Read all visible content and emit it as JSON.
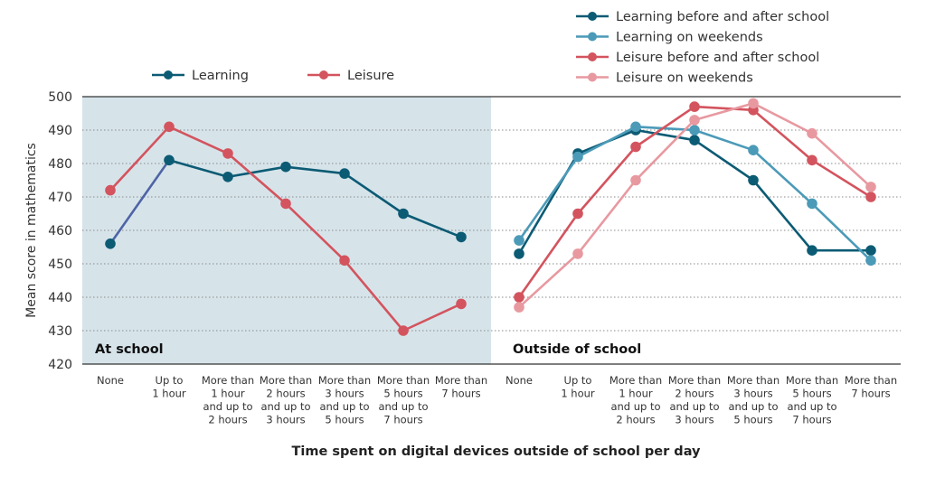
{
  "chart_data": {
    "type": "line",
    "ylabel": "Mean score in mathematics",
    "xlabel": "Time spent on digital devices outside of school per day",
    "ylim": [
      420,
      500
    ],
    "yticks": [
      420,
      430,
      440,
      450,
      460,
      470,
      480,
      490,
      500
    ],
    "categories": [
      [
        "None"
      ],
      [
        "Up to",
        "1 hour"
      ],
      [
        "More than",
        "1 hour",
        "and up to",
        "2 hours"
      ],
      [
        "More than",
        "2 hours",
        "and up to",
        "3 hours"
      ],
      [
        "More than",
        "3 hours",
        "and up to",
        "5 hours"
      ],
      [
        "More than",
        "5 hours",
        "and up to",
        "7 hours"
      ],
      [
        "More than",
        "7 hours"
      ]
    ],
    "panels": [
      {
        "title": "At school",
        "background": "#d6e4ea",
        "legend": [
          {
            "name": "Learning",
            "color": "#0c5b74"
          },
          {
            "name": "Leisure",
            "color": "#d3545e"
          }
        ],
        "series": [
          {
            "name": "Learning",
            "color": "#0c5b74",
            "first_segment_color": "#4f64a6",
            "values": [
              456,
              481,
              476,
              479,
              477,
              465,
              458
            ]
          },
          {
            "name": "Leisure",
            "color": "#d3545e",
            "values": [
              472,
              491,
              483,
              468,
              451,
              430,
              438
            ]
          }
        ]
      },
      {
        "title": "Outside of school",
        "background": "#ffffff",
        "legend": [
          {
            "name": "Learning before and after school",
            "color": "#0c5b74"
          },
          {
            "name": "Learning on weekends",
            "color": "#4b9ab8"
          },
          {
            "name": "Leisure before and after school",
            "color": "#d3545e"
          },
          {
            "name": "Leisure on weekends",
            "color": "#e899a0"
          }
        ],
        "series": [
          {
            "name": "Learning before and after school",
            "color": "#0c5b74",
            "values": [
              453,
              483,
              490,
              487,
              475,
              454,
              454
            ]
          },
          {
            "name": "Learning on weekends",
            "color": "#4b9ab8",
            "values": [
              457,
              482,
              491,
              490,
              484,
              468,
              451
            ]
          },
          {
            "name": "Leisure before and after school",
            "color": "#d3545e",
            "values": [
              440,
              465,
              485,
              497,
              496,
              481,
              470
            ]
          },
          {
            "name": "Leisure on weekends",
            "color": "#e899a0",
            "values": [
              437,
              453,
              475,
              493,
              498,
              489,
              473
            ]
          }
        ]
      }
    ]
  }
}
